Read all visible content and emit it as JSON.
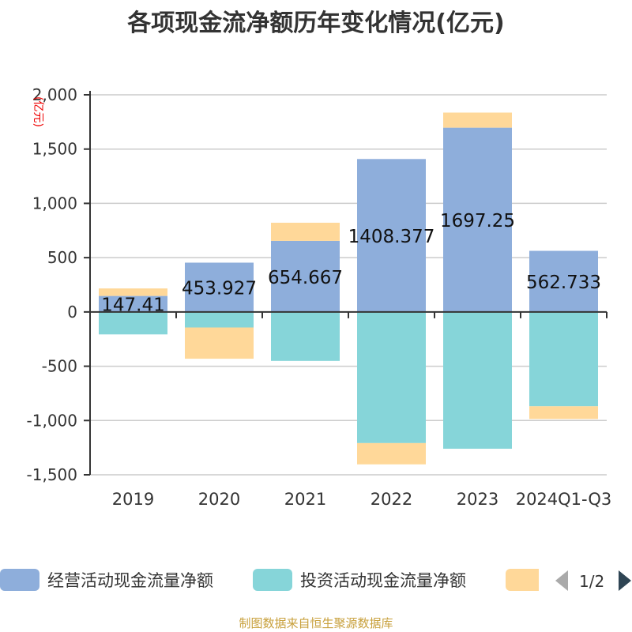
{
  "chart_data": {
    "type": "bar",
    "stacked": true,
    "title": "各项现金流净额历年变化情况(亿元)",
    "ylabel": "(亿元)",
    "xlabel": "",
    "ylim": [
      -1500,
      2000
    ],
    "yticks": [
      "2,000",
      "1,500",
      "1,000",
      "500",
      "0",
      "-500",
      "-1,000",
      "-1,500"
    ],
    "ytick_values": [
      2000,
      1500,
      1000,
      500,
      0,
      -500,
      -1000,
      -1500
    ],
    "grid": true,
    "legend_position": "bottom",
    "categories": [
      "2019",
      "2020",
      "2021",
      "2022",
      "2023",
      "2024Q1-Q3"
    ],
    "series": [
      {
        "name": "经营活动现金流量净额",
        "color": "#8eaedb",
        "values": [
          147.41,
          453.927,
          654.667,
          1408.377,
          1697.25,
          562.733
        ],
        "labels": [
          "147.41",
          "453.927",
          "654.667",
          "1408.377",
          "1697.25",
          "562.733"
        ]
      },
      {
        "name": "投资活动现金流量净额",
        "color": "#86d5d9",
        "values": [
          -207,
          -143,
          -451,
          -1208,
          -1260,
          -869
        ]
      },
      {
        "color": "#ffd899",
        "values": [
          69,
          -288,
          167,
          -196,
          139,
          -117
        ]
      }
    ]
  },
  "legend": {
    "page": "1/2"
  },
  "source": "制图数据来自恒生聚源数据库"
}
